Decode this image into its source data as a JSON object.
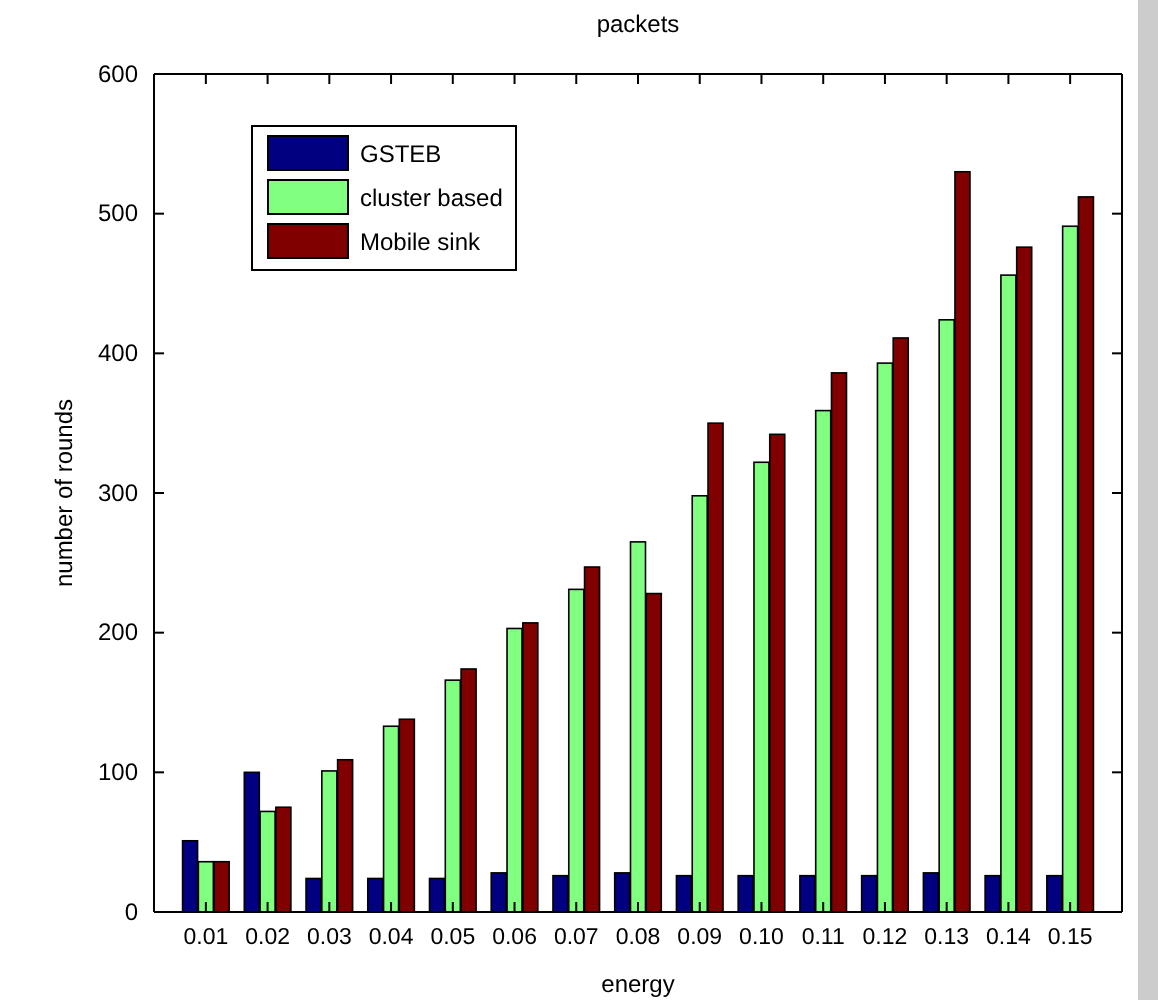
{
  "chart_data": {
    "type": "bar",
    "title": "packets",
    "xlabel": "energy",
    "ylabel": "number of rounds",
    "categories": [
      "0.01",
      "0.02",
      "0.03",
      "0.04",
      "0.05",
      "0.06",
      "0.07",
      "0.08",
      "0.09",
      "0.10",
      "0.11",
      "0.12",
      "0.13",
      "0.14",
      "0.15"
    ],
    "series": [
      {
        "name": "GSTEB",
        "color": "#000080",
        "values": [
          51,
          100,
          24,
          24,
          24,
          28,
          26,
          28,
          26,
          26,
          26,
          26,
          28,
          26,
          26
        ]
      },
      {
        "name": "cluster based",
        "color": "#80ff80",
        "values": [
          36,
          72,
          101,
          133,
          166,
          203,
          231,
          265,
          298,
          322,
          359,
          393,
          424,
          456,
          491
        ]
      },
      {
        "name": "Mobile sink",
        "color": "#800000",
        "values": [
          36,
          75,
          109,
          138,
          174,
          207,
          247,
          228,
          350,
          342,
          386,
          411,
          530,
          476,
          512
        ]
      }
    ],
    "ylim": [
      0,
      600
    ],
    "yticks": [
      0,
      100,
      200,
      300,
      400,
      500,
      600
    ],
    "grid": false,
    "legend": "top left"
  }
}
